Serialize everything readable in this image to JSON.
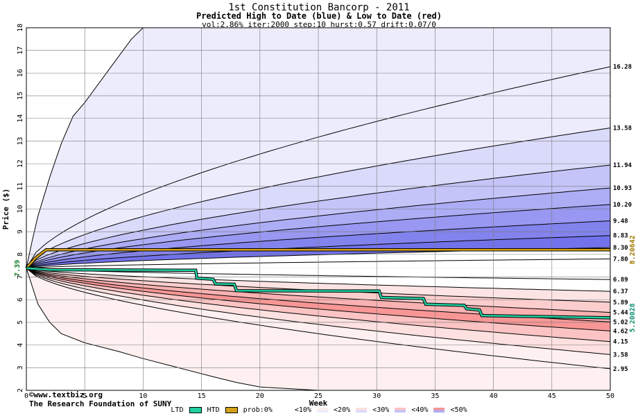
{
  "chart_data": {
    "type": "area",
    "title": "1st Constitution Bancorp - 2011",
    "subtitle": "Predicted High to Date (blue) &  Low to Date (red)",
    "params": "vol:2.86% iter:2000 step:10 hurst:0.57 drift:0.07/0",
    "xlabel": "Week",
    "ylabel": "Price ($)",
    "xlim": [
      0,
      50
    ],
    "ylim": [
      2,
      18
    ],
    "x_ticks": [
      0,
      5,
      10,
      15,
      20,
      25,
      30,
      35,
      40,
      45,
      50
    ],
    "y_ticks": [
      2,
      3,
      4,
      5,
      6,
      7,
      8,
      9,
      10,
      11,
      12,
      13,
      14,
      15,
      16,
      17,
      18
    ],
    "start_price": 7.39,
    "start_label": "7.39",
    "grid": true,
    "high_bands": [
      {
        "label": "16.28",
        "end": 16.28,
        "fill": "#ececfd"
      },
      {
        "label": "13.58",
        "end": 13.58,
        "fill": "#dadafb"
      },
      {
        "label": "11.94",
        "end": 11.94,
        "fill": "#c4c4f9"
      },
      {
        "label": "10.93",
        "end": 10.93,
        "fill": "#adadf6"
      },
      {
        "label": "10.20",
        "end": 10.2,
        "fill": "#9898f2"
      },
      {
        "label": "9.48",
        "end": 9.48,
        "fill": "#8383ee"
      },
      {
        "label": "8.83",
        "end": 8.83,
        "fill": "#7272ea"
      },
      {
        "label": "8.30",
        "end": 8.3,
        "fill": "#ffffff"
      },
      {
        "label": "7.80",
        "end": 7.8,
        "fill": "#ffffff"
      }
    ],
    "low_bands": [
      {
        "label": "6.89",
        "end": 6.89,
        "fill": "#ffffff"
      },
      {
        "label": "6.37",
        "end": 6.37,
        "fill": "#ffffff"
      },
      {
        "label": "5.89",
        "end": 5.89,
        "fill": "#fde4e4"
      },
      {
        "label": "5.44",
        "end": 5.44,
        "fill": "#fbcdcd"
      },
      {
        "label": "5.02",
        "end": 5.02,
        "fill": "#f9b1b1"
      },
      {
        "label": "4.62",
        "end": 4.62,
        "fill": "#f89696"
      },
      {
        "label": "4.15",
        "end": 4.15,
        "fill": "#fbc3c3"
      },
      {
        "label": "3.58",
        "end": 3.58,
        "fill": "#fde0e0"
      },
      {
        "label": "2.95",
        "end": 2.95,
        "fill": "#fef0f0"
      }
    ],
    "outer_high": [
      [
        0,
        7.39
      ],
      [
        0.5,
        8.6
      ],
      [
        1,
        9.7
      ],
      [
        2,
        11.4
      ],
      [
        3,
        12.9
      ],
      [
        4,
        14.1
      ],
      [
        5,
        14.7
      ],
      [
        6,
        15.4
      ],
      [
        7,
        16.1
      ],
      [
        8,
        16.8
      ],
      [
        9,
        17.5
      ],
      [
        10,
        18
      ]
    ],
    "outer_low": [
      [
        0,
        7.39
      ],
      [
        1,
        5.8
      ],
      [
        2,
        5.0
      ],
      [
        3,
        4.5
      ],
      [
        5,
        4.1
      ],
      [
        8,
        3.7
      ],
      [
        10,
        3.4
      ],
      [
        13,
        3.0
      ],
      [
        16,
        2.6
      ],
      [
        18,
        2.35
      ],
      [
        20,
        2.15
      ],
      [
        25,
        2.0
      ]
    ],
    "htd": {
      "name": "HTD",
      "color": "#d4a017",
      "points": [
        [
          0,
          7.39
        ],
        [
          0.8,
          7.85
        ],
        [
          1.7,
          8.2
        ],
        [
          50,
          8.2
        ]
      ]
    },
    "ltd": {
      "name": "LTD",
      "color": "#20d0a0",
      "points": [
        [
          0,
          7.39
        ],
        [
          2,
          7.32
        ],
        [
          14.5,
          7.3
        ],
        [
          14.6,
          6.95
        ],
        [
          16,
          6.9
        ],
        [
          16.2,
          6.7
        ],
        [
          17.8,
          6.68
        ],
        [
          18,
          6.4
        ],
        [
          30.2,
          6.38
        ],
        [
          30.4,
          6.1
        ],
        [
          34,
          6.05
        ],
        [
          34.2,
          5.8
        ],
        [
          37.5,
          5.75
        ],
        [
          37.7,
          5.6
        ],
        [
          38.8,
          5.55
        ],
        [
          39,
          5.3
        ],
        [
          50,
          5.2
        ]
      ]
    },
    "right_value_htd": "8.20642",
    "right_value_ltd": "5.20028"
  },
  "credit": {
    "line1": "©www.textbiz.org",
    "line2": "The Research Foundation of SUNY"
  },
  "legend": {
    "ltd": "LTD",
    "htd": "HTD",
    "items": [
      "prob:0%",
      "<10%",
      "<20%",
      "<30%",
      "<40%",
      "<50%"
    ],
    "colors": {
      "ltd": "#20d0a0",
      "htd": "#d4a017",
      "p0": [
        "#ffffff",
        "#ffffff"
      ],
      "p10": [
        "#fef0f0",
        "#ececfd"
      ],
      "p20": [
        "#fde0e0",
        "#dadafb"
      ],
      "p30": [
        "#fbc3c3",
        "#c4c4f9"
      ],
      "p40": [
        "#f89696",
        "#adadf6"
      ],
      "p50": [
        "#f46f6f",
        "#7272ea"
      ]
    }
  }
}
